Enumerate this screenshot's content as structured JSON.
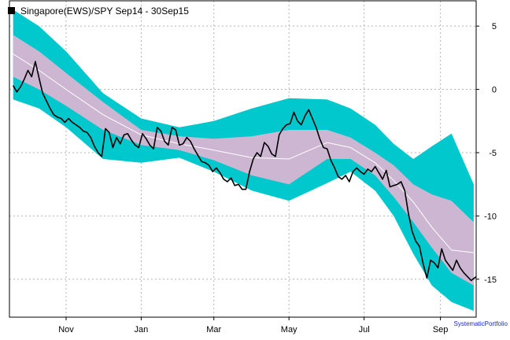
{
  "colors": {
    "background": "#ffffff",
    "outer_band": "#00c8cc",
    "inner_band": "#cdb6d2",
    "median_line": "#ffffff",
    "price_line": "#000000",
    "grid": "#b4b4b4",
    "credit": "#1a2bd6"
  },
  "credit": "SystematicPortfolio",
  "chart_data": {
    "type": "line",
    "title": "Singapore(EWS)/SPY Sep14 - 30Sep15",
    "legend": {
      "entries": [
        "Singapore(EWS)/SPY Sep14 - 30Sep15"
      ],
      "position": "top-left",
      "marker": "filled-square"
    },
    "xlabel": "",
    "ylabel": "",
    "x_axis": {
      "start": "2014-09-16",
      "end": "2015-09-30",
      "ticks": [
        {
          "date": "2014-11-01",
          "label": "Nov"
        },
        {
          "date": "2015-01-01",
          "label": "Jan"
        },
        {
          "date": "2015-03-01",
          "label": "Mar"
        },
        {
          "date": "2015-05-01",
          "label": "May"
        },
        {
          "date": "2015-07-01",
          "label": "Jul"
        },
        {
          "date": "2015-09-01",
          "label": "Sep"
        }
      ]
    },
    "y_axis": {
      "position": "right",
      "ylim": [
        -18,
        7
      ],
      "ticks": [
        5,
        0,
        -5,
        -10,
        -15
      ],
      "tick_labels": [
        "5",
        "0",
        "-5",
        "-10",
        "-15"
      ]
    },
    "grid": true,
    "bands": {
      "x": [
        "2014-09-19",
        "2014-10-10",
        "2014-11-01",
        "2014-12-01",
        "2015-01-01",
        "2015-02-01",
        "2015-03-01",
        "2015-04-01",
        "2015-05-01",
        "2015-06-01",
        "2015-06-20",
        "2015-07-10",
        "2015-07-25",
        "2015-08-10",
        "2015-08-25",
        "2015-09-10",
        "2015-09-28"
      ],
      "outer_upper": [
        6.3,
        5.0,
        3.0,
        -0.3,
        -2.3,
        -3.0,
        -2.5,
        -1.5,
        -0.7,
        -0.8,
        -1.5,
        -2.8,
        -4.3,
        -5.5,
        -4.5,
        -3.5,
        -7.5
      ],
      "inner_upper": [
        4.3,
        3.0,
        1.3,
        -1.0,
        -3.2,
        -3.7,
        -3.9,
        -3.7,
        -3.2,
        -3.2,
        -3.8,
        -5.0,
        -6.0,
        -7.5,
        -8.3,
        -8.8,
        -10.5
      ],
      "median": [
        2.8,
        1.5,
        0,
        -2.0,
        -3.6,
        -4.3,
        -4.8,
        -5.4,
        -5.5,
        -4.2,
        -4.6,
        -5.8,
        -7.2,
        -8.9,
        -10.9,
        -12.7,
        -12.9
      ],
      "inner_lower": [
        1.0,
        0.0,
        -1.3,
        -3.2,
        -4.4,
        -4.8,
        -5.6,
        -6.8,
        -7.5,
        -5.5,
        -5.5,
        -6.8,
        -8.5,
        -10.5,
        -12.5,
        -14.5,
        -15.5
      ],
      "outer_lower": [
        -0.8,
        -1.5,
        -3.0,
        -5.5,
        -5.8,
        -5.4,
        -6.5,
        -8.0,
        -8.8,
        -7.4,
        -6.5,
        -8.0,
        -10.0,
        -13.0,
        -15.5,
        -16.8,
        -17.5
      ]
    },
    "series": [
      {
        "name": "Singapore(EWS)/SPY Sep14 - 30Sep15",
        "x": [
          "2014-09-19",
          "2014-09-22",
          "2014-09-25",
          "2014-09-28",
          "2014-10-01",
          "2014-10-04",
          "2014-10-07",
          "2014-10-10",
          "2014-10-13",
          "2014-10-16",
          "2014-10-19",
          "2014-10-22",
          "2014-10-25",
          "2014-10-28",
          "2014-10-31",
          "2014-11-03",
          "2014-11-06",
          "2014-11-09",
          "2014-11-12",
          "2014-11-15",
          "2014-11-18",
          "2014-11-21",
          "2014-11-24",
          "2014-11-27",
          "2014-11-30",
          "2014-12-03",
          "2014-12-06",
          "2014-12-09",
          "2014-12-12",
          "2014-12-15",
          "2014-12-18",
          "2014-12-21",
          "2014-12-24",
          "2014-12-27",
          "2014-12-30",
          "2015-01-02",
          "2015-01-05",
          "2015-01-08",
          "2015-01-11",
          "2015-01-14",
          "2015-01-17",
          "2015-01-20",
          "2015-01-23",
          "2015-01-26",
          "2015-01-29",
          "2015-02-01",
          "2015-02-04",
          "2015-02-07",
          "2015-02-10",
          "2015-02-13",
          "2015-02-16",
          "2015-02-19",
          "2015-02-22",
          "2015-02-25",
          "2015-02-28",
          "2015-03-03",
          "2015-03-06",
          "2015-03-09",
          "2015-03-12",
          "2015-03-15",
          "2015-03-18",
          "2015-03-21",
          "2015-03-24",
          "2015-03-27",
          "2015-03-30",
          "2015-04-02",
          "2015-04-05",
          "2015-04-08",
          "2015-04-11",
          "2015-04-14",
          "2015-04-17",
          "2015-04-20",
          "2015-04-23",
          "2015-04-26",
          "2015-04-29",
          "2015-05-02",
          "2015-05-05",
          "2015-05-08",
          "2015-05-11",
          "2015-05-14",
          "2015-05-17",
          "2015-05-20",
          "2015-05-23",
          "2015-05-26",
          "2015-05-29",
          "2015-06-01",
          "2015-06-04",
          "2015-06-07",
          "2015-06-10",
          "2015-06-13",
          "2015-06-16",
          "2015-06-19",
          "2015-06-22",
          "2015-06-25",
          "2015-06-28",
          "2015-07-01",
          "2015-07-04",
          "2015-07-07",
          "2015-07-10",
          "2015-07-13",
          "2015-07-16",
          "2015-07-19",
          "2015-07-22",
          "2015-07-25",
          "2015-07-28",
          "2015-07-31",
          "2015-08-03",
          "2015-08-06",
          "2015-08-09",
          "2015-08-12",
          "2015-08-15",
          "2015-08-18",
          "2015-08-21",
          "2015-08-24",
          "2015-08-27",
          "2015-08-30",
          "2015-09-02",
          "2015-09-05",
          "2015-09-08",
          "2015-09-11",
          "2015-09-14",
          "2015-09-17",
          "2015-09-20",
          "2015-09-23",
          "2015-09-26",
          "2015-09-30"
        ],
        "y": [
          0.3,
          -0.2,
          0.2,
          0.8,
          1.5,
          1.0,
          2.2,
          0.9,
          -0.3,
          -0.9,
          -1.5,
          -2.0,
          -2.2,
          -2.3,
          -2.6,
          -2.3,
          -2.6,
          -2.8,
          -3.0,
          -3.3,
          -3.4,
          -3.8,
          -4.5,
          -5.0,
          -5.3,
          -3.1,
          -3.4,
          -4.6,
          -3.8,
          -4.3,
          -3.6,
          -3.5,
          -4.0,
          -4.4,
          -4.6,
          -3.5,
          -3.9,
          -4.4,
          -4.7,
          -3.0,
          -3.3,
          -4.1,
          -4.4,
          -3.0,
          -3.2,
          -4.4,
          -4.3,
          -3.8,
          -4.1,
          -4.7,
          -5.2,
          -5.7,
          -5.8,
          -6.0,
          -6.5,
          -6.2,
          -6.6,
          -7.1,
          -7.3,
          -7.0,
          -7.6,
          -7.5,
          -7.9,
          -7.9,
          -6.5,
          -5.5,
          -5.0,
          -5.3,
          -4.2,
          -4.5,
          -5.1,
          -5.3,
          -3.6,
          -3.1,
          -2.8,
          -2.7,
          -1.8,
          -2.5,
          -2.8,
          -2.1,
          -1.6,
          -2.3,
          -3.0,
          -3.9,
          -4.6,
          -4.7,
          -5.6,
          -6.2,
          -6.9,
          -7.1,
          -6.8,
          -7.3,
          -6.5,
          -6.2,
          -6.5,
          -6.7,
          -6.3,
          -6.5,
          -6.1,
          -6.6,
          -7.1,
          -6.4,
          -7.7,
          -7.6,
          -7.5,
          -7.3,
          -8.0,
          -9.8,
          -11.2,
          -12.0,
          -12.4,
          -13.8,
          -14.9,
          -13.5,
          -13.7,
          -14.1,
          -12.6,
          -13.5,
          -13.9,
          -14.3,
          -13.5,
          -14.1,
          -14.5,
          -14.8,
          -15.1,
          -14.8
        ]
      }
    ]
  }
}
